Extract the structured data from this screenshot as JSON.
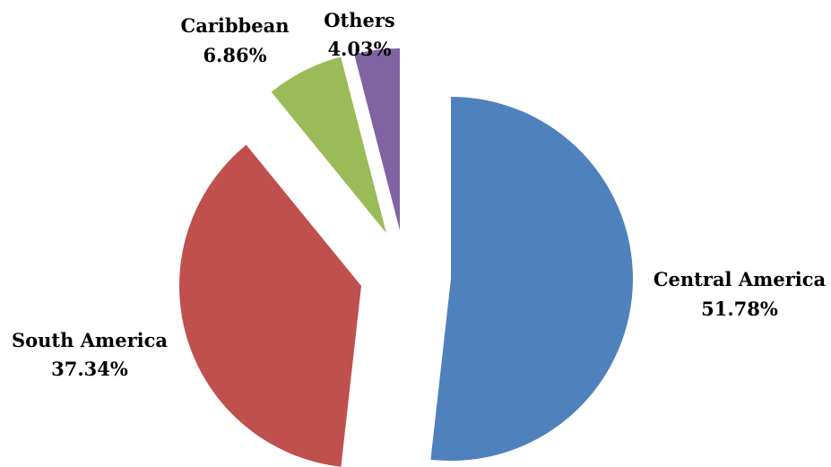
{
  "chart_data": {
    "type": "pie",
    "title": "",
    "slices": [
      {
        "label": "Central America",
        "value": 51.78,
        "value_text": "51.78%",
        "color": "#4F81BD"
      },
      {
        "label": "South America",
        "value": 37.34,
        "value_text": "37.34%",
        "color": "#C0504D"
      },
      {
        "label": "Caribbean",
        "value": 6.86,
        "value_text": "6.86%",
        "color": "#9BBB59"
      },
      {
        "label": "Others",
        "value": 4.03,
        "value_text": "4.03%",
        "color": "#8064A2"
      }
    ],
    "exploded": true,
    "start_angle": "12 o'clock",
    "direction": "clockwise",
    "legend": "none",
    "data_labels": "outside, category and percentage"
  }
}
